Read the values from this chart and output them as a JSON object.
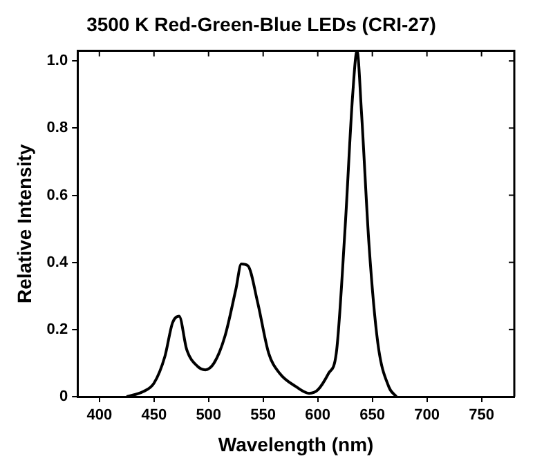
{
  "chart_data": {
    "type": "line",
    "title": "3500 K Red-Green-Blue LEDs (CRI-27)",
    "xlabel": "Wavelength (nm)",
    "ylabel": "Relative Intensity",
    "x": [
      425,
      440,
      450,
      460,
      467,
      473,
      480,
      490,
      497,
      505,
      515,
      525,
      530,
      536,
      545,
      555,
      565,
      580,
      592,
      600,
      610,
      617,
      625,
      632,
      636,
      640,
      647,
      655,
      665,
      672
    ],
    "series": [
      {
        "color": "#000000",
        "values": [
          0,
          0.015,
          0.04,
          0.12,
          0.22,
          0.24,
          0.14,
          0.09,
          0.08,
          0.1,
          0.18,
          0.32,
          0.395,
          0.39,
          0.28,
          0.13,
          0.07,
          0.03,
          0.01,
          0.02,
          0.07,
          0.13,
          0.5,
          0.9,
          1.03,
          0.85,
          0.45,
          0.16,
          0.03,
          0
        ]
      }
    ],
    "xlim": [
      380,
      780
    ],
    "xticks": [
      400,
      450,
      500,
      550,
      600,
      650,
      700,
      750
    ],
    "ylim": [
      0,
      1.03
    ],
    "yticks": [
      0,
      {
        "value": 0.2,
        "label": "0.2"
      },
      {
        "value": 0.4,
        "label": "0.4"
      },
      {
        "value": 0.6,
        "label": "0.6"
      },
      {
        "value": 0.8,
        "label": "0.8"
      },
      {
        "value": 1,
        "label": "1.0"
      }
    ],
    "grid": false,
    "legend": false,
    "marker": "none",
    "line_style": "solid"
  }
}
